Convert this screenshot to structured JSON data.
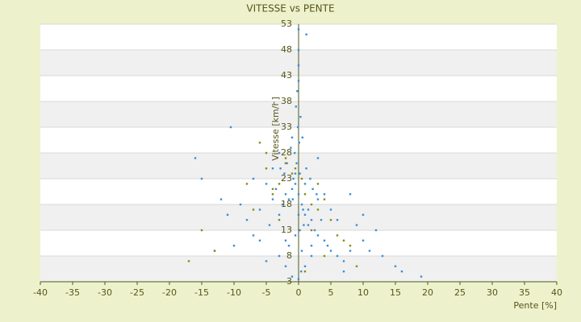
{
  "chart_data": {
    "type": "scatter",
    "title": "VITESSE vs PENTE",
    "x_label": "Pente [%]",
    "y_label": "Vitesse [km/h]",
    "xlim": [
      -40,
      40
    ],
    "xticks": [
      -40,
      -35,
      -30,
      -25,
      -20,
      -15,
      -10,
      -5,
      0,
      5,
      10,
      15,
      20,
      25,
      30,
      35,
      40
    ],
    "ylim": [
      3,
      53
    ],
    "yticks": [
      3,
      8,
      13,
      18,
      23,
      28,
      33,
      38,
      43,
      48,
      53
    ],
    "grid": true,
    "series": [
      {
        "color": "#3a8fd8",
        "x": [
          0,
          0.5,
          -0.5,
          1,
          -1,
          1.5,
          -1.5,
          2,
          -2,
          0.2,
          -0.3,
          0.8,
          -0.8,
          2.5,
          -2.5,
          3,
          -3,
          3.5,
          -3.5,
          4,
          -4,
          4.5,
          -4.5,
          5,
          -5,
          6,
          -6,
          7,
          -7,
          8,
          -8,
          9,
          -9,
          10,
          -10,
          11,
          -11,
          12,
          -12,
          13,
          15,
          16,
          19,
          -15,
          -16,
          -13,
          0.1,
          -0.1,
          0.3,
          0.6,
          -0.6,
          1.2,
          -1.2,
          1.8,
          -1.8,
          2.2,
          -2.2,
          2.8,
          -2.8,
          0,
          0,
          0,
          0,
          -0.2,
          0.4,
          1,
          -1,
          3,
          -3,
          5,
          -5,
          6,
          -6,
          0.5,
          -0.5,
          2,
          -2,
          4,
          -4,
          7,
          0,
          -0.4,
          -1,
          0.2,
          -1.5,
          0,
          1,
          -0.5,
          -10.5,
          1.2,
          8,
          -7,
          10,
          -3,
          3,
          -2,
          2,
          0.7,
          -0.9,
          1.5
        ],
        "values": [
          20,
          18,
          22,
          16,
          21,
          17,
          19,
          15,
          20,
          24,
          26,
          14,
          23,
          13,
          18,
          12,
          16,
          15,
          21,
          11,
          19,
          10,
          14,
          9,
          22,
          8,
          17,
          7,
          12,
          9,
          15,
          14,
          18,
          11,
          10,
          9,
          16,
          13,
          19,
          8,
          6,
          5,
          4,
          23,
          27,
          9,
          30,
          33,
          35,
          31,
          28,
          25,
          29,
          23,
          26,
          21,
          24,
          20,
          25,
          52,
          48,
          45,
          42,
          40,
          5,
          6,
          4,
          19,
          8,
          17,
          7,
          15,
          11,
          9,
          12,
          10,
          6,
          20,
          25,
          5,
          3.5,
          37,
          31,
          13,
          10,
          16,
          22,
          24,
          33,
          51,
          20,
          23,
          16,
          28,
          27,
          11,
          8,
          17,
          19,
          14
        ]
      },
      {
        "color": "#8c8a10",
        "x": [
          -1,
          -2,
          -3,
          -4,
          -5,
          -6,
          1,
          2,
          3,
          4,
          5,
          6,
          7,
          -17,
          -15,
          -13,
          -7,
          -4,
          0.5,
          -0.5,
          2,
          -2,
          3,
          -3,
          8,
          -8,
          4,
          -5,
          1,
          9
        ],
        "values": [
          24,
          26,
          22,
          21,
          28,
          30,
          20,
          18,
          17,
          19,
          15,
          12,
          11,
          7,
          13,
          9,
          17,
          20,
          23,
          25,
          13,
          27,
          22,
          15,
          10,
          22,
          8,
          25,
          5,
          6
        ]
      }
    ]
  }
}
